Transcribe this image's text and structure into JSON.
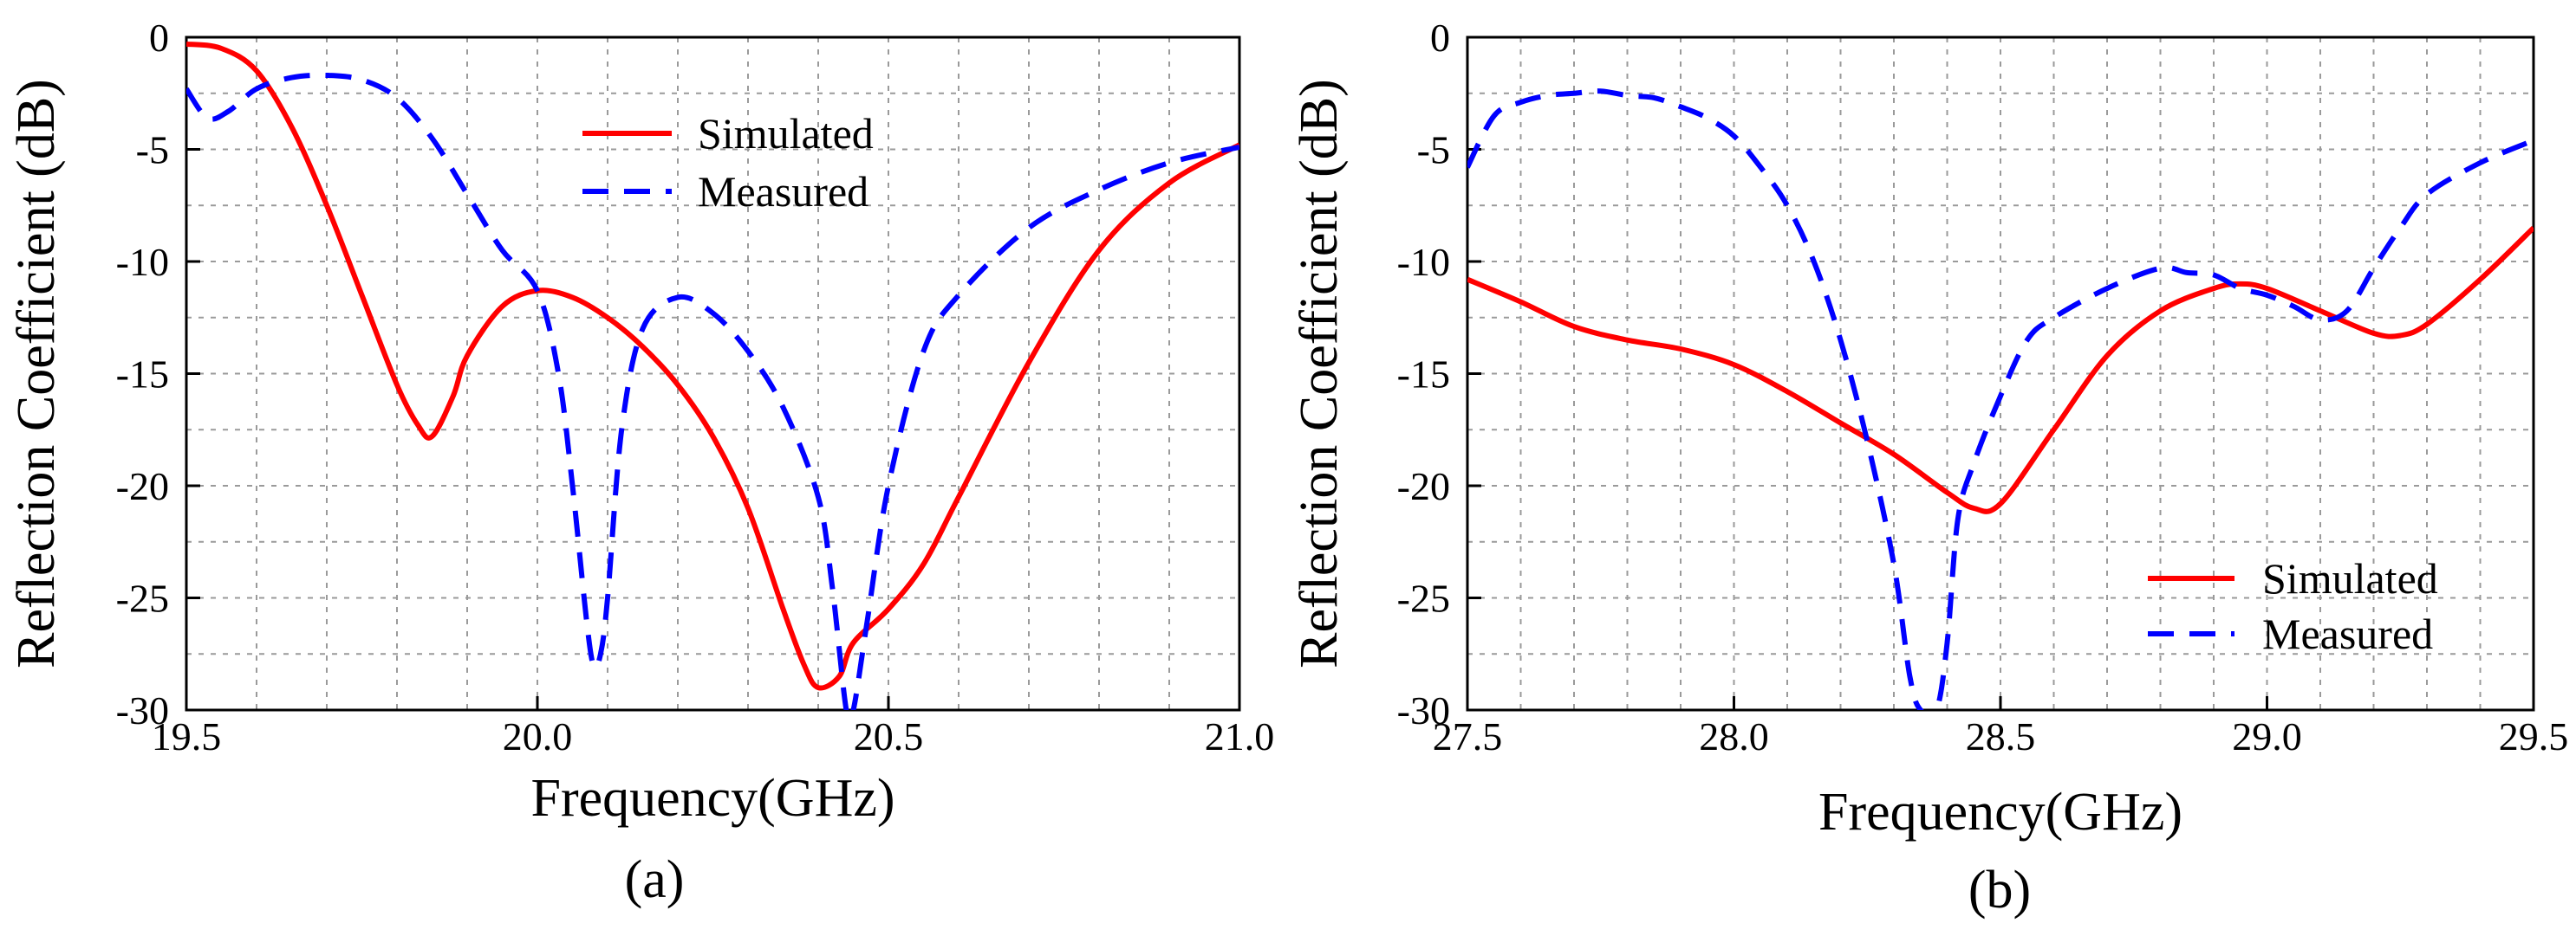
{
  "chart_data": [
    {
      "type": "line",
      "caption": "(a)",
      "xlabel": "Frequency(GHz)",
      "ylabel": "Reflection Coefficient (dB)",
      "xlim": [
        19.5,
        21.0
      ],
      "ylim": [
        -30,
        0
      ],
      "xticks": [
        "19.5",
        "20.0",
        "20.5",
        "21.0"
      ],
      "yticks": [
        "0",
        "-5",
        "-10",
        "-15",
        "-20",
        "-25",
        "-30"
      ],
      "grid": true,
      "legend_position": "top-center",
      "series": [
        {
          "name": "Simulated",
          "color": "#ff0000",
          "style": "solid",
          "x": [
            19.5,
            19.55,
            19.6,
            19.65,
            19.7,
            19.75,
            19.8,
            19.83,
            19.85,
            19.88,
            19.9,
            19.95,
            20.0,
            20.05,
            20.1,
            20.15,
            20.2,
            20.25,
            20.3,
            20.35,
            20.38,
            20.4,
            20.43,
            20.45,
            20.5,
            20.55,
            20.6,
            20.7,
            20.8,
            20.9,
            21.0
          ],
          "y": [
            -0.3,
            -0.5,
            -1.5,
            -4.0,
            -7.5,
            -11.5,
            -15.5,
            -17.3,
            -17.8,
            -16.0,
            -14.2,
            -12.0,
            -11.3,
            -11.6,
            -12.5,
            -13.8,
            -15.5,
            -17.8,
            -21.0,
            -25.5,
            -28.0,
            -29.0,
            -28.5,
            -27.0,
            -25.5,
            -23.5,
            -20.5,
            -14.5,
            -9.5,
            -6.5,
            -4.8
          ]
        },
        {
          "name": "Measured",
          "color": "#0000ff",
          "style": "dashed",
          "x": [
            19.5,
            19.53,
            19.56,
            19.6,
            19.65,
            19.7,
            19.75,
            19.8,
            19.85,
            19.9,
            19.95,
            20.0,
            20.03,
            20.05,
            20.07,
            20.08,
            20.09,
            20.1,
            20.12,
            20.15,
            20.2,
            20.25,
            20.3,
            20.35,
            20.4,
            20.42,
            20.44,
            20.45,
            20.47,
            20.5,
            20.55,
            20.6,
            20.7,
            20.8,
            20.9,
            21.0
          ],
          "y": [
            -2.3,
            -3.6,
            -3.3,
            -2.3,
            -1.8,
            -1.7,
            -1.9,
            -2.7,
            -4.5,
            -7.0,
            -9.5,
            -11.3,
            -15.0,
            -20.0,
            -26.0,
            -28.0,
            -27.5,
            -25.0,
            -17.5,
            -13.0,
            -11.6,
            -12.3,
            -14.0,
            -16.5,
            -20.5,
            -24.5,
            -30.0,
            -30.0,
            -26.0,
            -20.0,
            -14.0,
            -11.5,
            -8.5,
            -6.8,
            -5.6,
            -4.9
          ]
        }
      ]
    },
    {
      "type": "line",
      "caption": "(b)",
      "xlabel": "Frequency(GHz)",
      "ylabel": "Reflection Coefficient (dB)",
      "xlim": [
        27.5,
        29.5
      ],
      "ylim": [
        -30,
        0
      ],
      "xticks": [
        "27.5",
        "28.0",
        "28.5",
        "29.0",
        "29.5"
      ],
      "yticks": [
        "0",
        "-5",
        "-10",
        "-15",
        "-20",
        "-25",
        "-30"
      ],
      "grid": true,
      "legend_position": "bottom-right",
      "series": [
        {
          "name": "Simulated",
          "color": "#ff0000",
          "style": "solid",
          "x": [
            27.5,
            27.6,
            27.7,
            27.8,
            27.9,
            28.0,
            28.1,
            28.2,
            28.3,
            28.4,
            28.45,
            28.5,
            28.6,
            28.7,
            28.8,
            28.9,
            28.95,
            29.0,
            29.1,
            29.2,
            29.25,
            29.3,
            29.4,
            29.5
          ],
          "y": [
            -10.8,
            -11.8,
            -12.9,
            -13.5,
            -13.9,
            -14.6,
            -15.8,
            -17.2,
            -18.6,
            -20.3,
            -21.0,
            -20.8,
            -17.5,
            -14.2,
            -12.2,
            -11.2,
            -11.0,
            -11.2,
            -12.2,
            -13.2,
            -13.3,
            -12.8,
            -10.8,
            -8.5
          ]
        },
        {
          "name": "Measured",
          "color": "#0000ff",
          "style": "dashed",
          "x": [
            27.5,
            27.55,
            27.6,
            27.65,
            27.7,
            27.75,
            27.8,
            27.85,
            27.9,
            27.95,
            28.0,
            28.05,
            28.1,
            28.15,
            28.2,
            28.25,
            28.3,
            28.33,
            28.35,
            28.38,
            28.4,
            28.42,
            28.45,
            28.5,
            28.55,
            28.6,
            28.7,
            28.8,
            28.85,
            28.9,
            28.95,
            29.0,
            29.05,
            29.1,
            29.15,
            29.2,
            29.25,
            29.3,
            29.4,
            29.5
          ],
          "y": [
            -5.8,
            -3.5,
            -2.9,
            -2.6,
            -2.5,
            -2.4,
            -2.6,
            -2.7,
            -3.1,
            -3.6,
            -4.4,
            -5.8,
            -7.5,
            -10.0,
            -13.5,
            -18.0,
            -23.5,
            -28.5,
            -30.0,
            -30.0,
            -27.0,
            -21.5,
            -19.0,
            -16.0,
            -13.5,
            -12.5,
            -11.2,
            -10.3,
            -10.5,
            -10.6,
            -11.2,
            -11.5,
            -12.0,
            -12.6,
            -12.2,
            -10.3,
            -8.5,
            -7.0,
            -5.6,
            -4.6
          ]
        }
      ]
    }
  ]
}
